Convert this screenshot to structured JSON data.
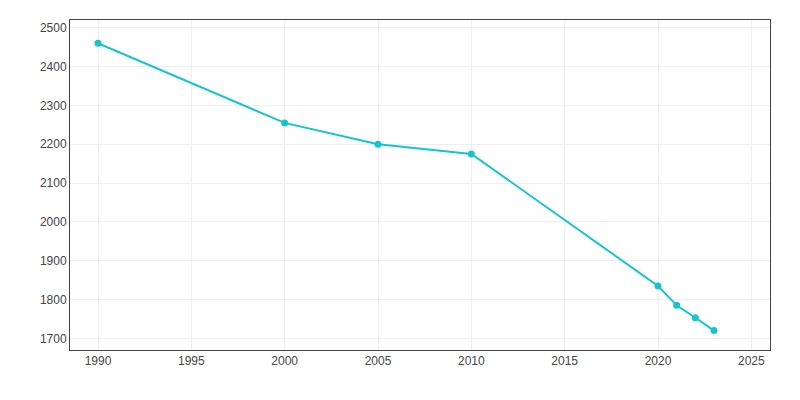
{
  "chart_data": {
    "type": "line",
    "x": [
      1990,
      2000,
      2005,
      2010,
      2020,
      2021,
      2022,
      2023
    ],
    "values": [
      2460,
      2255,
      2200,
      2175,
      1835,
      1785,
      1753,
      1720
    ],
    "color": "#17C3CE",
    "marker": "circle",
    "xlim": [
      1988.5,
      2026
    ],
    "ylim": [
      1670,
      2520
    ],
    "xticks": [
      1990,
      1995,
      2000,
      2005,
      2010,
      2015,
      2020,
      2025
    ],
    "yticks": [
      1700,
      1800,
      1900,
      2000,
      2100,
      2200,
      2300,
      2400,
      2500
    ],
    "grid": true
  }
}
